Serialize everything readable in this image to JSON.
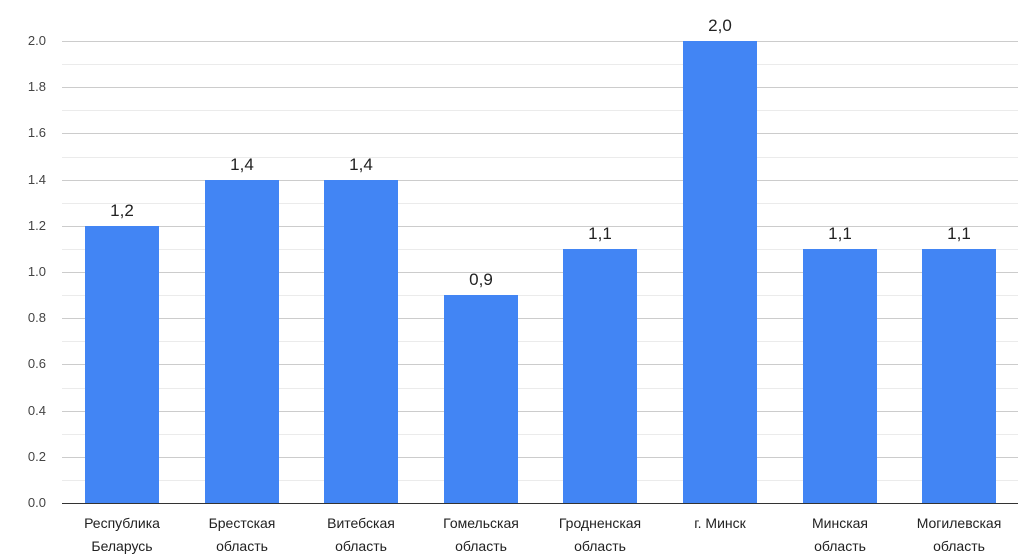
{
  "chart_data": {
    "type": "bar",
    "title": "",
    "xlabel": "",
    "ylabel": "",
    "categories": [
      "Республика Беларусь",
      "Брестская область",
      "Витебская область",
      "Гомельская область",
      "Гродненская область",
      "г. Минск",
      "Минская область",
      "Могилевская область"
    ],
    "category_lines": [
      [
        "Республика",
        "Беларусь"
      ],
      [
        "Брестская",
        "область"
      ],
      [
        "Витебская",
        "область"
      ],
      [
        "Гомельская",
        "область"
      ],
      [
        "Гродненская",
        "область"
      ],
      [
        "г. Минск",
        ""
      ],
      [
        "Минская",
        "область"
      ],
      [
        "Могилевская",
        "область"
      ]
    ],
    "values": [
      1.2,
      1.4,
      1.4,
      0.9,
      1.1,
      2.0,
      1.1,
      1.1
    ],
    "data_labels": [
      "1,2",
      "1,4",
      "1,4",
      "0,9",
      "1,1",
      "2,0",
      "1,1",
      "1,1"
    ],
    "ylim": [
      0,
      2.0
    ],
    "yticks": [
      "0.0",
      "0.2",
      "0.4",
      "0.6",
      "0.8",
      "1.0",
      "1.2",
      "1.4",
      "1.6",
      "1.8",
      "2.0"
    ],
    "grid": true,
    "minor_grid": true,
    "legend": null,
    "bar_color": "#4285f4"
  }
}
